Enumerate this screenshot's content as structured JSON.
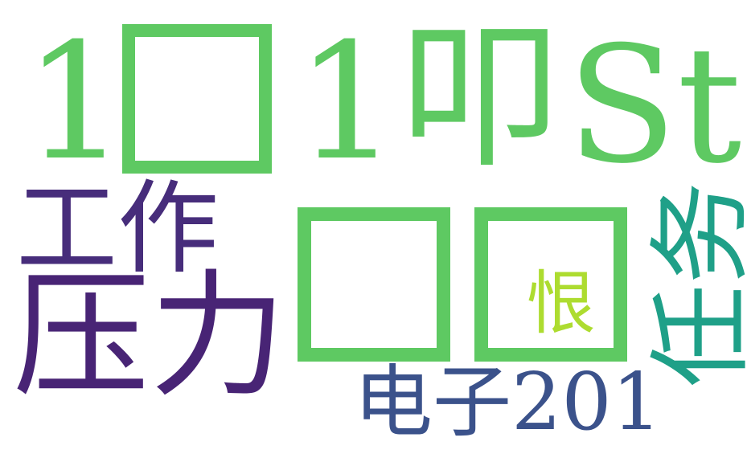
{
  "wordcloud": {
    "words": [
      {
        "id": "w-1a",
        "text": "1",
        "color": "#5ec962"
      },
      {
        "id": "tofu-1",
        "text": "",
        "color": "#5ec962"
      },
      {
        "id": "w-1b",
        "text": "1",
        "color": "#5ec962"
      },
      {
        "id": "w-kou",
        "text": "叩",
        "color": "#5ec962"
      },
      {
        "id": "w-st",
        "text": "St",
        "color": "#5ec962"
      },
      {
        "id": "w-gongzuo",
        "text": "工作",
        "color": "#472d7b"
      },
      {
        "id": "w-yali",
        "text": "压力",
        "color": "#482475"
      },
      {
        "id": "tofu-2",
        "text": "",
        "color": "#5ec962"
      },
      {
        "id": "tofu-3",
        "text": "",
        "color": "#5ec962"
      },
      {
        "id": "w-hen",
        "text": "恨",
        "color": "#addc30"
      },
      {
        "id": "w-renwu",
        "text": "任务",
        "color": "#1fa088",
        "orientation": "vertical"
      },
      {
        "id": "w-dianzi",
        "text": "电子201",
        "color": "#3b528b"
      }
    ]
  }
}
